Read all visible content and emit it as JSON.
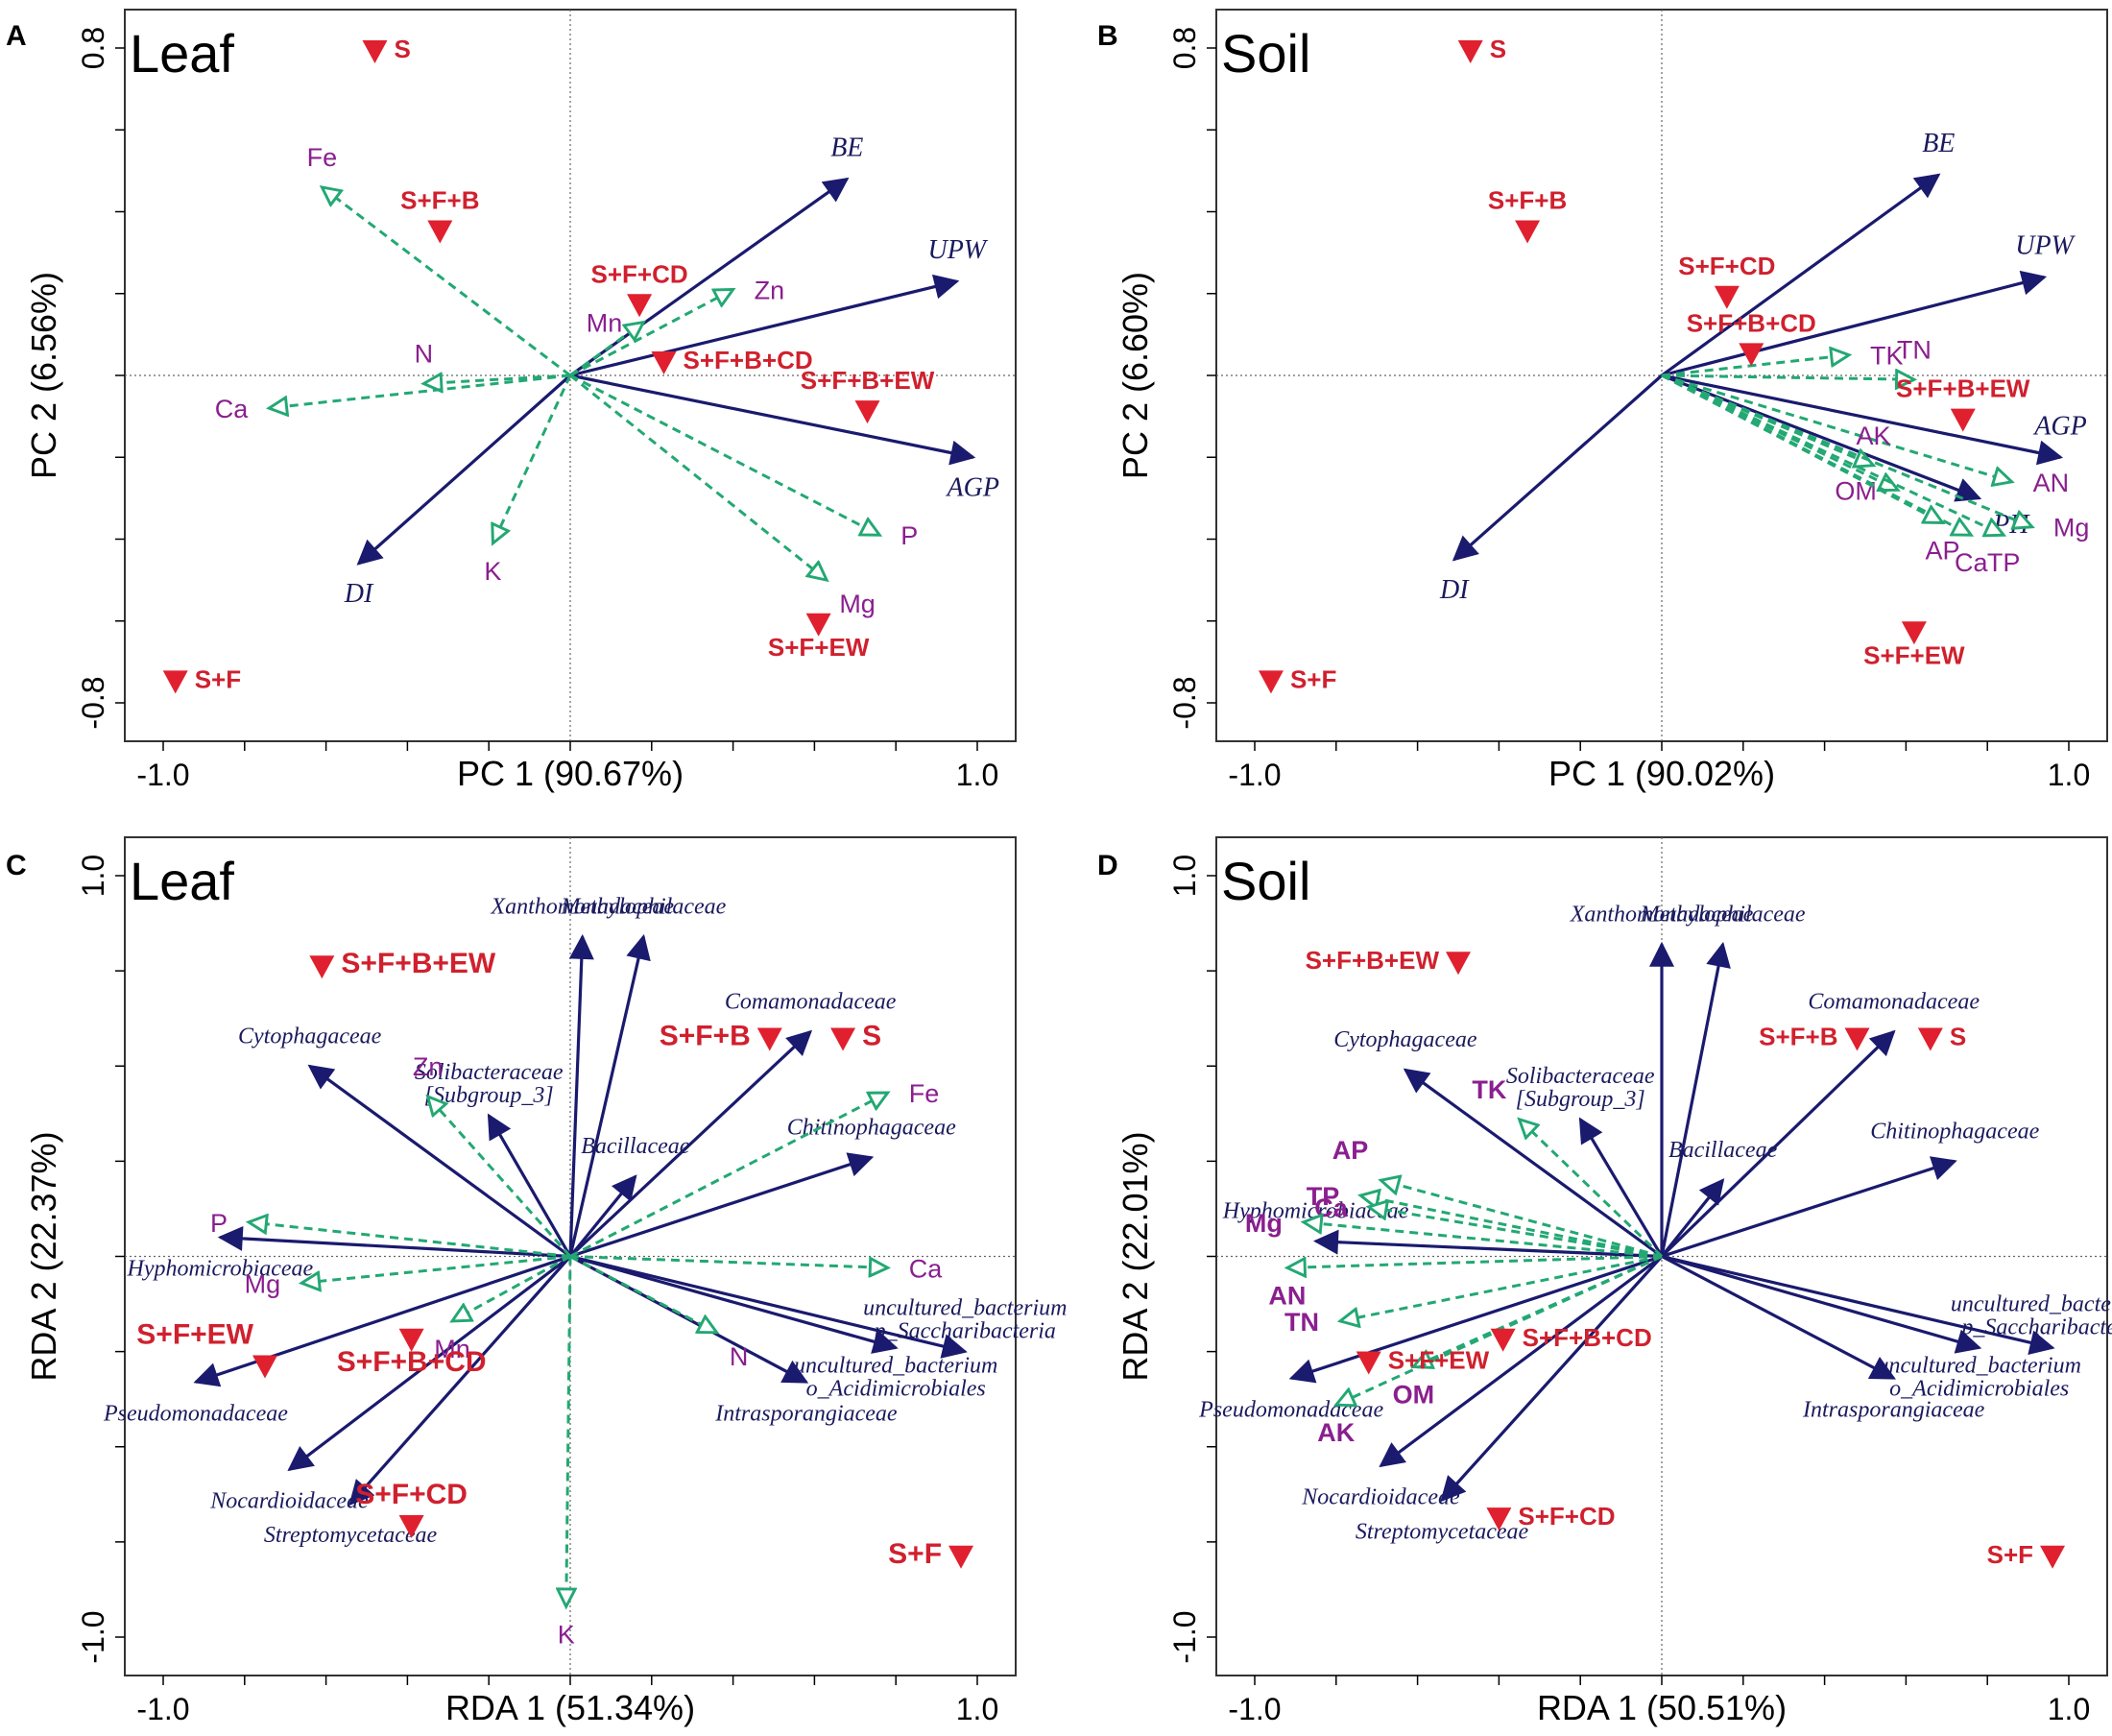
{
  "colors": {
    "arrow_solid": "#1a1a6e",
    "arrow_dashed": "#23a873",
    "site_marker": "#e0202e",
    "site_label": "#d0202e",
    "env_label": "#8a1f8f",
    "species_label": "#1a1a5e",
    "axis": "#000000",
    "frame": "#333333"
  },
  "chart_data": [
    {
      "panel": "A",
      "type": "scatter",
      "subtype": "pca-biplot",
      "title": "Leaf",
      "xlabel": "PC 1",
      "xlabel_pct": "(90.67%)",
      "ylabel": "PC 2",
      "ylabel_pct": "(6.56%)",
      "xlim": [
        -1.0,
        1.0
      ],
      "ylim": [
        -0.8,
        0.8
      ],
      "x_ticks": [
        {
          "value": -1.0,
          "label": "-1.0"
        },
        {
          "value": 1.0,
          "label": "1.0"
        }
      ],
      "y_ticks": [
        {
          "value": -0.8,
          "label": "-0.8"
        },
        {
          "value": 0.8,
          "label": "0.8"
        }
      ],
      "trait_arrows": [
        {
          "label": "BE",
          "x": 0.68,
          "y": 0.48,
          "label_pos": "above"
        },
        {
          "label": "UPW",
          "x": 0.95,
          "y": 0.23,
          "label_pos": "above"
        },
        {
          "label": "AGP",
          "x": 0.99,
          "y": -0.2,
          "label_pos": "below"
        },
        {
          "label": "DI",
          "x": -0.52,
          "y": -0.46,
          "label_pos": "below"
        }
      ],
      "env_arrows": [
        {
          "label": "Fe",
          "x": -0.61,
          "y": 0.46,
          "label_pos": "above"
        },
        {
          "label": "Zn",
          "x": 0.4,
          "y": 0.21,
          "label_pos": "right"
        },
        {
          "label": "Mn",
          "x": 0.18,
          "y": 0.13,
          "label_pos": "left"
        },
        {
          "label": "N",
          "x": -0.36,
          "y": -0.02,
          "label_pos": "above"
        },
        {
          "label": "Ca",
          "x": -0.74,
          "y": -0.08,
          "label_pos": "left"
        },
        {
          "label": "K",
          "x": -0.19,
          "y": -0.41,
          "label_pos": "below"
        },
        {
          "label": "P",
          "x": 0.76,
          "y": -0.39,
          "label_pos": "right"
        },
        {
          "label": "Mg",
          "x": 0.63,
          "y": -0.5,
          "label_pos": "right-below"
        }
      ],
      "sites": [
        {
          "label": "S",
          "x": -0.48,
          "y": 0.8,
          "label_pos": "right"
        },
        {
          "label": "S+F+B",
          "x": -0.32,
          "y": 0.36,
          "label_pos": "above"
        },
        {
          "label": "S+F+CD",
          "x": 0.17,
          "y": 0.18,
          "label_pos": "above"
        },
        {
          "label": "S+F+B+CD",
          "x": 0.23,
          "y": 0.04,
          "label_pos": "right"
        },
        {
          "label": "S+F+B+EW",
          "x": 0.73,
          "y": -0.08,
          "label_pos": "above"
        },
        {
          "label": "S+F+EW",
          "x": 0.61,
          "y": -0.6,
          "label_pos": "below"
        },
        {
          "label": "S+F",
          "x": -0.97,
          "y": -0.74,
          "label_pos": "right"
        }
      ]
    },
    {
      "panel": "B",
      "type": "scatter",
      "subtype": "pca-biplot",
      "title": "Soil",
      "xlabel": "PC 1",
      "xlabel_pct": "(90.02%)",
      "ylabel": "PC 2",
      "ylabel_pct": "(6.60%)",
      "xlim": [
        -1.0,
        1.0
      ],
      "ylim": [
        -0.8,
        0.8
      ],
      "x_ticks": [
        {
          "value": -1.0,
          "label": "-1.0"
        },
        {
          "value": 1.0,
          "label": "1.0"
        }
      ],
      "y_ticks": [
        {
          "value": -0.8,
          "label": "-0.8"
        },
        {
          "value": 0.8,
          "label": "0.8"
        }
      ],
      "trait_arrows": [
        {
          "label": "BE",
          "x": 0.68,
          "y": 0.49,
          "label_pos": "above"
        },
        {
          "label": "UPW",
          "x": 0.94,
          "y": 0.24,
          "label_pos": "above"
        },
        {
          "label": "AGP",
          "x": 0.98,
          "y": -0.2,
          "label_pos": "above"
        },
        {
          "label": "PH",
          "x": 0.78,
          "y": -0.3,
          "label_pos": "right-below"
        },
        {
          "label": "DI",
          "x": -0.51,
          "y": -0.45,
          "label_pos": "below"
        }
      ],
      "env_arrows": [
        {
          "label": "TK",
          "x": 0.46,
          "y": 0.05,
          "label_pos": "right"
        },
        {
          "label": "TN",
          "x": 0.62,
          "y": -0.01,
          "label_pos": "above"
        },
        {
          "label": "AN",
          "x": 0.86,
          "y": -0.26,
          "label_pos": "right"
        },
        {
          "label": "AK",
          "x": 0.52,
          "y": -0.22,
          "label_pos": "above"
        },
        {
          "label": "OM",
          "x": 0.58,
          "y": -0.28,
          "label_pos": "left"
        },
        {
          "label": "Mg",
          "x": 0.91,
          "y": -0.37,
          "label_pos": "right"
        },
        {
          "label": "TP",
          "x": 0.84,
          "y": -0.39,
          "label_pos": "below"
        },
        {
          "label": "Ca",
          "x": 0.76,
          "y": -0.39,
          "label_pos": "below"
        },
        {
          "label": "AP",
          "x": 0.69,
          "y": -0.36,
          "label_pos": "below"
        }
      ],
      "sites": [
        {
          "label": "S",
          "x": -0.47,
          "y": 0.8,
          "label_pos": "right"
        },
        {
          "label": "S+F+B",
          "x": -0.33,
          "y": 0.36,
          "label_pos": "above"
        },
        {
          "label": "S+F+CD",
          "x": 0.16,
          "y": 0.2,
          "label_pos": "above"
        },
        {
          "label": "S+F+B+CD",
          "x": 0.22,
          "y": 0.06,
          "label_pos": "above"
        },
        {
          "label": "S+F+B+EW",
          "x": 0.74,
          "y": -0.1,
          "label_pos": "above"
        },
        {
          "label": "S+F+EW",
          "x": 0.62,
          "y": -0.62,
          "label_pos": "below"
        },
        {
          "label": "S+F",
          "x": -0.96,
          "y": -0.74,
          "label_pos": "right"
        }
      ]
    },
    {
      "panel": "C",
      "type": "scatter",
      "subtype": "rda-triplot",
      "title": "Leaf",
      "xlabel": "RDA 1",
      "xlabel_pct": "(51.34%)",
      "ylabel": "RDA 2",
      "ylabel_pct": "(22.37%)",
      "xlim": [
        -1.0,
        1.0
      ],
      "ylim": [
        -1.0,
        1.0
      ],
      "x_ticks": [
        {
          "value": -1.0,
          "label": "-1.0"
        },
        {
          "value": 1.0,
          "label": "1.0"
        }
      ],
      "y_ticks": [
        {
          "value": -1.0,
          "label": "-1.0"
        },
        {
          "value": 1.0,
          "label": "1.0"
        }
      ],
      "species_arrows": [
        {
          "label": "Xanthomonadaceae",
          "x": 0.03,
          "y": 0.84,
          "label_pos": "above"
        },
        {
          "label": "Methylophilaceae",
          "x": 0.18,
          "y": 0.84,
          "label_pos": "above"
        },
        {
          "label": "Comamonadaceae",
          "x": 0.59,
          "y": 0.59,
          "label_pos": "above"
        },
        {
          "label": "Cytophagaceae",
          "x": -0.64,
          "y": 0.5,
          "label_pos": "above"
        },
        {
          "label": "Solibacteraceae [Subgroup_3]",
          "x": -0.2,
          "y": 0.37,
          "label_pos": "above"
        },
        {
          "label": "Bacillaceae",
          "x": 0.16,
          "y": 0.21,
          "label_pos": "above"
        },
        {
          "label": "Chitinophagaceae",
          "x": 0.74,
          "y": 0.26,
          "label_pos": "above"
        },
        {
          "label": "Hyphomicrobiaceae",
          "x": -0.86,
          "y": 0.05,
          "label_pos": "below"
        },
        {
          "label": "uncultured_bacterium p_Saccharibacteria",
          "x": 0.97,
          "y": -0.25,
          "label_pos": "above"
        },
        {
          "label": "uncultured_bacterium o_Acidimicrobiales",
          "x": 0.8,
          "y": -0.24,
          "label_pos": "below"
        },
        {
          "label": "Intrasporangiaceae",
          "x": 0.58,
          "y": -0.33,
          "label_pos": "below"
        },
        {
          "label": "Pseudomonadaceae",
          "x": -0.92,
          "y": -0.33,
          "label_pos": "below"
        },
        {
          "label": "Nocardioidaceae",
          "x": -0.69,
          "y": -0.56,
          "label_pos": "below"
        },
        {
          "label": "Streptomycetaceae",
          "x": -0.54,
          "y": -0.65,
          "label_pos": "below"
        }
      ],
      "env_arrows": [
        {
          "label": "Fe",
          "x": 0.78,
          "y": 0.43,
          "label_pos": "right"
        },
        {
          "label": "Zn",
          "x": -0.35,
          "y": 0.42,
          "label_pos": "above"
        },
        {
          "label": "P",
          "x": -0.79,
          "y": 0.09,
          "label_pos": "left"
        },
        {
          "label": "Ca",
          "x": 0.78,
          "y": -0.03,
          "label_pos": "right"
        },
        {
          "label": "Mg",
          "x": -0.66,
          "y": -0.07,
          "label_pos": "left"
        },
        {
          "label": "Mn",
          "x": -0.29,
          "y": -0.17,
          "label_pos": "below"
        },
        {
          "label": "N",
          "x": 0.36,
          "y": -0.2,
          "label_pos": "right-below"
        },
        {
          "label": "K",
          "x": -0.01,
          "y": -0.92,
          "label_pos": "below"
        }
      ],
      "sites": [
        {
          "label": "S+F+B+EW",
          "x": -0.61,
          "y": 0.77,
          "label_pos": "right"
        },
        {
          "label": "S+F+B",
          "x": 0.49,
          "y": 0.58,
          "label_pos": "left"
        },
        {
          "label": "S",
          "x": 0.67,
          "y": 0.58,
          "label_pos": "right"
        },
        {
          "label": "S+F+EW",
          "x": -0.75,
          "y": -0.28,
          "label_pos": "above-left"
        },
        {
          "label": "S+F+B+CD",
          "x": -0.39,
          "y": -0.21,
          "label_pos": "below"
        },
        {
          "label": "S+F+CD",
          "x": -0.39,
          "y": -0.7,
          "label_pos": "above"
        },
        {
          "label": "S+F",
          "x": 0.96,
          "y": -0.78,
          "label_pos": "left"
        }
      ]
    },
    {
      "panel": "D",
      "type": "scatter",
      "subtype": "rda-triplot",
      "title": "Soil",
      "xlabel": "RDA 1",
      "xlabel_pct": "(50.51%)",
      "ylabel": "RDA 2",
      "ylabel_pct": "(22.01%)",
      "xlim": [
        -1.0,
        1.0
      ],
      "ylim": [
        -1.0,
        1.0
      ],
      "x_ticks": [
        {
          "value": -1.0,
          "label": "-1.0"
        },
        {
          "value": 1.0,
          "label": "1.0"
        }
      ],
      "y_ticks": [
        {
          "value": -1.0,
          "label": "-1.0"
        },
        {
          "value": 1.0,
          "label": "1.0"
        }
      ],
      "species_arrows": [
        {
          "label": "Xanthomonadaceae",
          "x": 0.0,
          "y": 0.82,
          "label_pos": "above"
        },
        {
          "label": "Methylophilaceae",
          "x": 0.15,
          "y": 0.82,
          "label_pos": "above"
        },
        {
          "label": "Comamonadaceae",
          "x": 0.57,
          "y": 0.59,
          "label_pos": "above"
        },
        {
          "label": "Cytophagaceae",
          "x": -0.63,
          "y": 0.49,
          "label_pos": "above"
        },
        {
          "label": "Solibacteraceae [Subgroup_3]",
          "x": -0.2,
          "y": 0.36,
          "label_pos": "above"
        },
        {
          "label": "Bacillaceae",
          "x": 0.15,
          "y": 0.2,
          "label_pos": "above"
        },
        {
          "label": "Chitinophagaceae",
          "x": 0.72,
          "y": 0.25,
          "label_pos": "above"
        },
        {
          "label": "Hyphomicrobiaceae",
          "x": -0.85,
          "y": 0.04,
          "label_pos": "above"
        },
        {
          "label": "uncultured_bacterium p_Saccharibacteria",
          "x": 0.96,
          "y": -0.24,
          "label_pos": "above"
        },
        {
          "label": "uncultured_bacterium o_Acidimicrobiales",
          "x": 0.78,
          "y": -0.24,
          "label_pos": "below"
        },
        {
          "label": "Intrasporangiaceae",
          "x": 0.57,
          "y": -0.32,
          "label_pos": "below"
        },
        {
          "label": "Pseudomonadaceae",
          "x": -0.91,
          "y": -0.32,
          "label_pos": "below"
        },
        {
          "label": "Nocardioidaceae",
          "x": -0.69,
          "y": -0.55,
          "label_pos": "below"
        },
        {
          "label": "Streptomycetaceae",
          "x": -0.54,
          "y": -0.64,
          "label_pos": "below"
        }
      ],
      "env_arrows": [
        {
          "label": "TK",
          "x": -0.35,
          "y": 0.36,
          "label_pos": "above-left"
        },
        {
          "label": "AP",
          "x": -0.69,
          "y": 0.2,
          "label_pos": "above-left"
        },
        {
          "label": "TP",
          "x": -0.74,
          "y": 0.16,
          "label_pos": "left"
        },
        {
          "label": "Ca",
          "x": -0.72,
          "y": 0.13,
          "label_pos": "left"
        },
        {
          "label": "Mg",
          "x": -0.88,
          "y": 0.09,
          "label_pos": "left"
        },
        {
          "label": "AN",
          "x": -0.92,
          "y": -0.03,
          "label_pos": "below"
        },
        {
          "label": "TN",
          "x": -0.79,
          "y": -0.17,
          "label_pos": "left"
        },
        {
          "label": "OM",
          "x": -0.61,
          "y": -0.29,
          "label_pos": "below"
        },
        {
          "label": "AK",
          "x": -0.8,
          "y": -0.39,
          "label_pos": "below"
        }
      ],
      "sites": [
        {
          "label": "S+F+B+EW",
          "x": -0.5,
          "y": 0.78,
          "label_pos": "left"
        },
        {
          "label": "S+F+B",
          "x": 0.48,
          "y": 0.58,
          "label_pos": "left"
        },
        {
          "label": "S",
          "x": 0.66,
          "y": 0.58,
          "label_pos": "right"
        },
        {
          "label": "S+F+B+CD",
          "x": -0.39,
          "y": -0.21,
          "label_pos": "right"
        },
        {
          "label": "S+F+EW",
          "x": -0.72,
          "y": -0.27,
          "label_pos": "right"
        },
        {
          "label": "S+F+CD",
          "x": -0.4,
          "y": -0.68,
          "label_pos": "right"
        },
        {
          "label": "S+F",
          "x": 0.96,
          "y": -0.78,
          "label_pos": "left"
        }
      ]
    }
  ]
}
